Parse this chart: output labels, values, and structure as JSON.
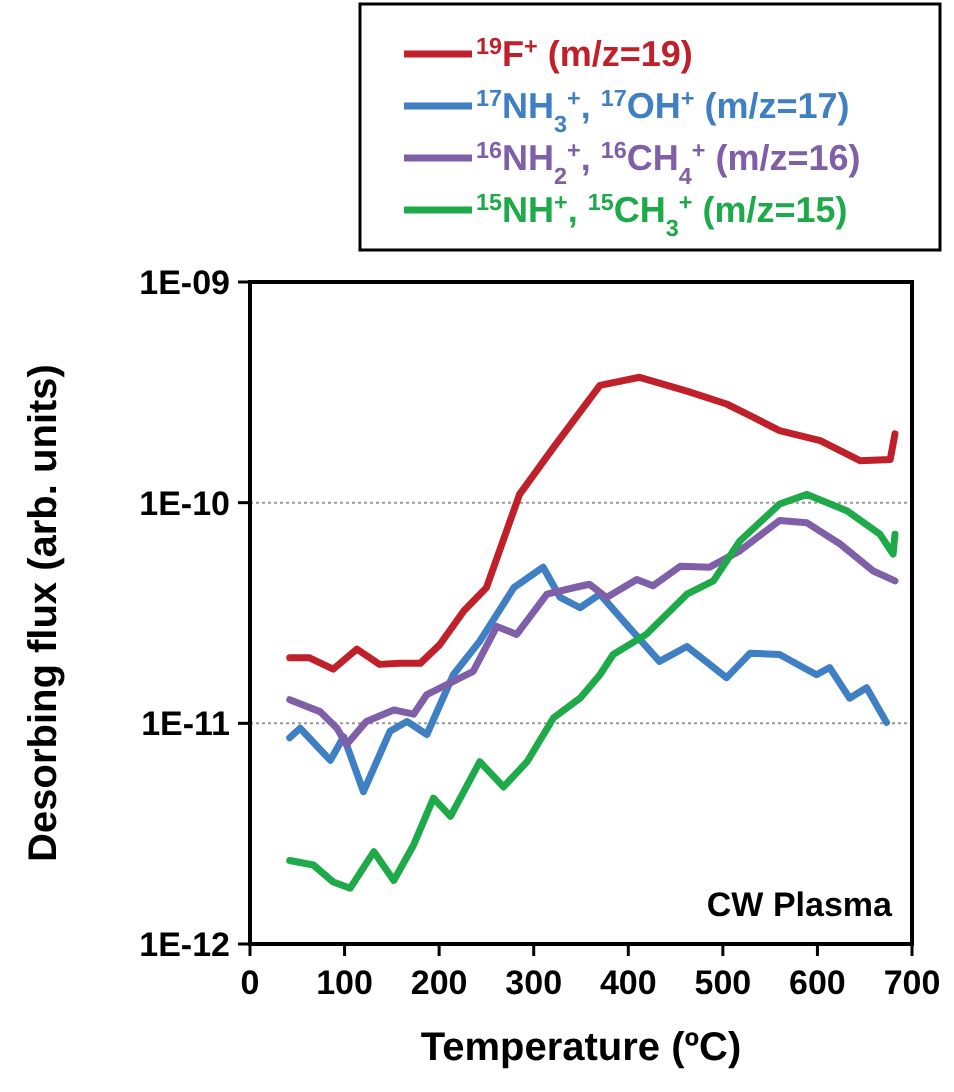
{
  "chart_data": {
    "type": "line",
    "xlabel": "Temperature (ºC)",
    "ylabel": "Desorbing flux (arb. units)",
    "log": "y",
    "xlim": [
      0,
      700
    ],
    "xticks": [
      0,
      100,
      200,
      300,
      400,
      500,
      600,
      700
    ],
    "ylim": [
      1e-12,
      1e-09
    ],
    "yticks": [
      {
        "value": 1e-12,
        "label": "1E-12"
      },
      {
        "value": 1e-11,
        "label": "1E-11"
      },
      {
        "value": 1e-10,
        "label": "1E-10"
      },
      {
        "value": 1e-09,
        "label": "1E-09"
      }
    ],
    "grid": "y",
    "legend": "top",
    "line_style": "solid",
    "marker": "none",
    "annotations": [
      "CW Plasma"
    ],
    "series": [
      {
        "name": "$^{19}$F$^{+}$ (m/z=19)",
        "color": "#c0202a",
        "x": [
          42,
          63,
          88,
          113,
          137,
          158,
          180,
          201,
          226,
          250,
          285,
          321,
          370,
          412,
          462,
          504,
          532,
          560,
          603,
          645,
          677,
          682
        ],
        "values": [
          1.98e-11,
          1.98e-11,
          1.76e-11,
          2.17e-11,
          1.85e-11,
          1.87e-11,
          1.87e-11,
          2.28e-11,
          3.23e-11,
          4.12e-11,
          1.09e-10,
          1.78e-10,
          3.4e-10,
          3.7e-10,
          3.2e-10,
          2.8e-10,
          2.44e-10,
          2.12e-10,
          1.91e-10,
          1.55e-10,
          1.57e-10,
          2.05e-10
        ]
      },
      {
        "name": "$^{17}$NH$_{3}$$^{+}$, $^{17}$OH$^{+}$ (m/z=17)",
        "color": "#3f7fc4",
        "x": [
          42,
          53,
          85,
          99,
          120,
          148,
          166,
          187,
          215,
          243,
          279,
          310,
          328,
          349,
          370,
          398,
          433,
          462,
          504,
          529,
          560,
          599,
          613,
          634,
          652,
          673
        ],
        "values": [
          8.6e-12,
          9.5e-12,
          6.8e-12,
          8.7e-12,
          4.9e-12,
          9.2e-12,
          1.02e-11,
          8.9e-12,
          1.66e-11,
          2.36e-11,
          4.12e-11,
          5.1e-11,
          3.72e-11,
          3.34e-11,
          3.85e-11,
          2.81e-11,
          1.91e-11,
          2.23e-11,
          1.61e-11,
          2.08e-11,
          2.05e-11,
          1.66e-11,
          1.79e-11,
          1.3e-11,
          1.45e-11,
          1.01e-11
        ]
      },
      {
        "name": "$^{16}$NH$_{2}$$^{+}$, $^{16}$CH$_{4}$$^{+}$ (m/z=16)",
        "color": "#7f5fa8",
        "x": [
          42,
          74,
          92,
          102,
          123,
          152,
          173,
          187,
          215,
          236,
          261,
          282,
          314,
          349,
          359,
          377,
          409,
          426,
          455,
          486,
          518,
          560,
          589,
          624,
          659,
          682
        ],
        "values": [
          1.28e-11,
          1.13e-11,
          9.5e-12,
          8e-12,
          1.02e-11,
          1.15e-11,
          1.1e-11,
          1.35e-11,
          1.55e-11,
          1.72e-11,
          2.75e-11,
          2.53e-11,
          3.85e-11,
          4.18e-11,
          4.27e-11,
          3.72e-11,
          4.49e-11,
          4.2e-11,
          5.15e-11,
          5.1e-11,
          6.05e-11,
          8.3e-11,
          8.1e-11,
          6.5e-11,
          4.9e-11,
          4.42e-11
        ]
      },
      {
        "name": "$^{15}$NH$^{+}$, $^{15}$CH$_{3}$$^{+}$ (m/z=15)",
        "color": "#1faa4a",
        "x": [
          42,
          67,
          88,
          106,
          131,
          152,
          173,
          194,
          212,
          243,
          268,
          293,
          321,
          349,
          370,
          384,
          419,
          462,
          490,
          518,
          560,
          589,
          631,
          666,
          680,
          682
        ],
        "values": [
          2.39e-12,
          2.28e-12,
          1.91e-12,
          1.79e-12,
          2.62e-12,
          1.94e-12,
          2.81e-12,
          4.58e-12,
          3.79e-12,
          6.7e-12,
          5.15e-12,
          6.7e-12,
          1.06e-11,
          1.3e-11,
          1.66e-11,
          2.05e-11,
          2.53e-11,
          3.85e-11,
          4.42e-11,
          6.7e-11,
          9.86e-11,
          1.09e-10,
          9.2e-11,
          7.2e-11,
          5.85e-11,
          7.2e-11
        ]
      }
    ]
  }
}
